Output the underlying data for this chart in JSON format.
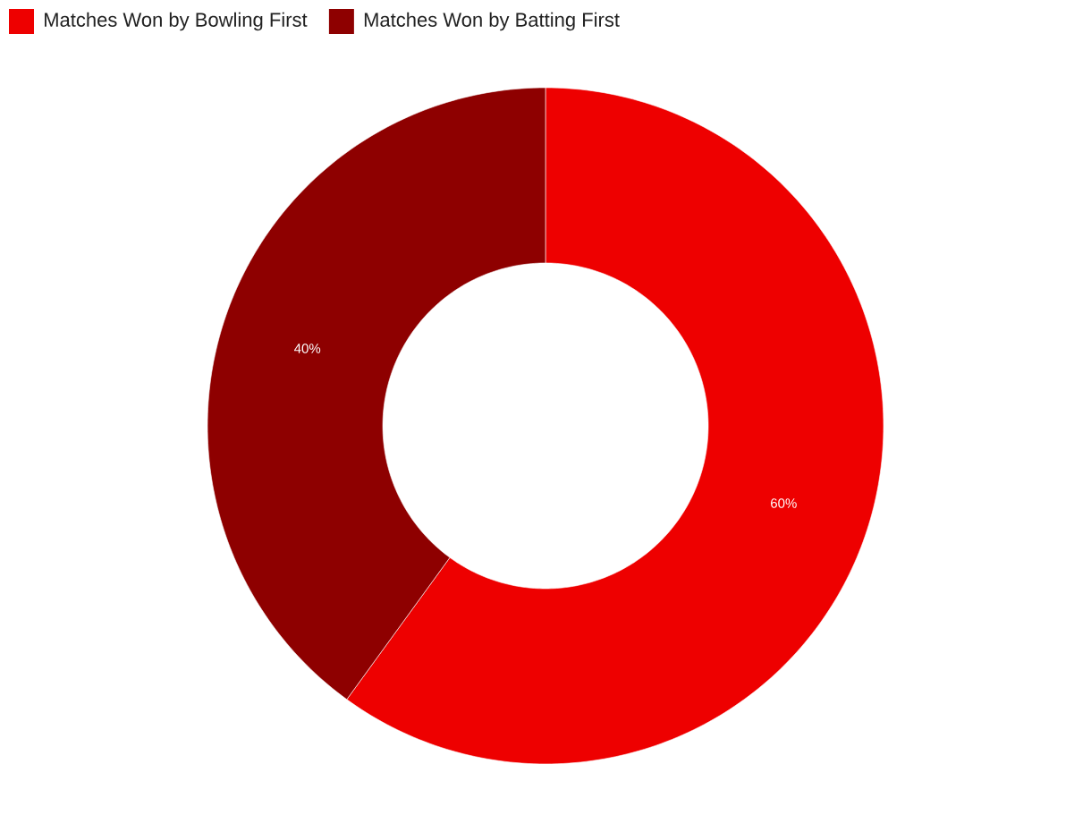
{
  "chart_data": {
    "type": "donut",
    "categories": [
      "Matches Won by Bowling First",
      "Matches Won by Batting First"
    ],
    "values": [
      60,
      40
    ],
    "colors": [
      "#ee0000",
      "#8e0000"
    ],
    "value_labels": [
      "60%",
      "40%"
    ],
    "legend": "top left"
  }
}
